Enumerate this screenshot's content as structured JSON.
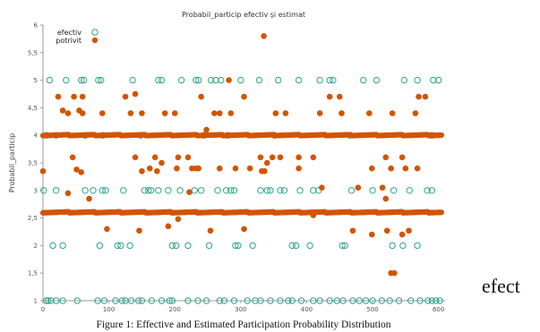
{
  "chart_data": {
    "type": "scatter",
    "title": "Probabil_particip efectiv și estimat",
    "ylabel": "Probabil_particip",
    "xlabel": "",
    "xlim": [
      0,
      610
    ],
    "ylim": [
      1,
      6
    ],
    "xticks": [
      0,
      100,
      200,
      300,
      400,
      500,
      600
    ],
    "yticks": [
      "1",
      "1,5",
      "2",
      "2,5",
      "3",
      "3,5",
      "4",
      "4,5",
      "5",
      "5,5",
      "6"
    ],
    "grid": false,
    "legend": "top-left",
    "series": [
      {
        "name": "efectiv",
        "marker": "hollow-circle",
        "color": "#2ca58d",
        "values": [
          {
            "x": 10,
            "y": 5
          },
          {
            "x": 35,
            "y": 5
          },
          {
            "x": 58,
            "y": 5
          },
          {
            "x": 62,
            "y": 5
          },
          {
            "x": 84,
            "y": 5
          },
          {
            "x": 88,
            "y": 5
          },
          {
            "x": 136,
            "y": 5
          },
          {
            "x": 175,
            "y": 5
          },
          {
            "x": 180,
            "y": 5
          },
          {
            "x": 210,
            "y": 5
          },
          {
            "x": 232,
            "y": 5
          },
          {
            "x": 236,
            "y": 5
          },
          {
            "x": 255,
            "y": 5
          },
          {
            "x": 262,
            "y": 5
          },
          {
            "x": 270,
            "y": 5
          },
          {
            "x": 300,
            "y": 5
          },
          {
            "x": 328,
            "y": 5
          },
          {
            "x": 357,
            "y": 5
          },
          {
            "x": 388,
            "y": 5
          },
          {
            "x": 420,
            "y": 5
          },
          {
            "x": 435,
            "y": 5
          },
          {
            "x": 440,
            "y": 5
          },
          {
            "x": 486,
            "y": 5
          },
          {
            "x": 506,
            "y": 5
          },
          {
            "x": 548,
            "y": 5
          },
          {
            "x": 568,
            "y": 5
          },
          {
            "x": 592,
            "y": 5
          },
          {
            "x": 600,
            "y": 5
          },
          {
            "x": 5,
            "y": 4
          },
          {
            "x": 20,
            "y": 4
          },
          {
            "x": 64,
            "y": 4
          },
          {
            "x": 91,
            "y": 4
          },
          {
            "x": 148,
            "y": 4
          },
          {
            "x": 244,
            "y": 4
          },
          {
            "x": 280,
            "y": 4
          },
          {
            "x": 351,
            "y": 4
          },
          {
            "x": 465,
            "y": 4
          },
          {
            "x": 590,
            "y": 4
          },
          {
            "x": 1,
            "y": 3
          },
          {
            "x": 20,
            "y": 3
          },
          {
            "x": 64,
            "y": 3
          },
          {
            "x": 76,
            "y": 3
          },
          {
            "x": 90,
            "y": 3
          },
          {
            "x": 95,
            "y": 3
          },
          {
            "x": 122,
            "y": 3
          },
          {
            "x": 154,
            "y": 3
          },
          {
            "x": 160,
            "y": 3
          },
          {
            "x": 164,
            "y": 3
          },
          {
            "x": 175,
            "y": 3
          },
          {
            "x": 190,
            "y": 3
          },
          {
            "x": 208,
            "y": 3
          },
          {
            "x": 230,
            "y": 3
          },
          {
            "x": 240,
            "y": 3
          },
          {
            "x": 265,
            "y": 3
          },
          {
            "x": 278,
            "y": 3
          },
          {
            "x": 285,
            "y": 3
          },
          {
            "x": 290,
            "y": 3
          },
          {
            "x": 330,
            "y": 3
          },
          {
            "x": 340,
            "y": 3
          },
          {
            "x": 345,
            "y": 3
          },
          {
            "x": 360,
            "y": 3
          },
          {
            "x": 366,
            "y": 3
          },
          {
            "x": 390,
            "y": 3
          },
          {
            "x": 410,
            "y": 3
          },
          {
            "x": 418,
            "y": 3
          },
          {
            "x": 468,
            "y": 3
          },
          {
            "x": 500,
            "y": 3
          },
          {
            "x": 532,
            "y": 3
          },
          {
            "x": 556,
            "y": 3
          },
          {
            "x": 583,
            "y": 3
          },
          {
            "x": 590,
            "y": 3
          },
          {
            "x": 15,
            "y": 2
          },
          {
            "x": 30,
            "y": 2
          },
          {
            "x": 86,
            "y": 2
          },
          {
            "x": 113,
            "y": 2
          },
          {
            "x": 118,
            "y": 2
          },
          {
            "x": 132,
            "y": 2
          },
          {
            "x": 196,
            "y": 2
          },
          {
            "x": 202,
            "y": 2
          },
          {
            "x": 220,
            "y": 2
          },
          {
            "x": 252,
            "y": 2
          },
          {
            "x": 292,
            "y": 2
          },
          {
            "x": 296,
            "y": 2
          },
          {
            "x": 318,
            "y": 2
          },
          {
            "x": 378,
            "y": 2
          },
          {
            "x": 384,
            "y": 2
          },
          {
            "x": 405,
            "y": 2
          },
          {
            "x": 454,
            "y": 2
          },
          {
            "x": 458,
            "y": 2
          },
          {
            "x": 530,
            "y": 2
          },
          {
            "x": 546,
            "y": 2
          },
          {
            "x": 568,
            "y": 2
          },
          {
            "x": 5,
            "y": 1
          },
          {
            "x": 8,
            "y": 1
          },
          {
            "x": 12,
            "y": 1
          },
          {
            "x": 20,
            "y": 1
          },
          {
            "x": 30,
            "y": 1
          },
          {
            "x": 52,
            "y": 1
          },
          {
            "x": 83,
            "y": 1
          },
          {
            "x": 93,
            "y": 1
          },
          {
            "x": 110,
            "y": 1
          },
          {
            "x": 120,
            "y": 1
          },
          {
            "x": 125,
            "y": 1
          },
          {
            "x": 134,
            "y": 1
          },
          {
            "x": 145,
            "y": 1
          },
          {
            "x": 150,
            "y": 1
          },
          {
            "x": 165,
            "y": 1
          },
          {
            "x": 180,
            "y": 1
          },
          {
            "x": 192,
            "y": 1
          },
          {
            "x": 196,
            "y": 1
          },
          {
            "x": 220,
            "y": 1
          },
          {
            "x": 235,
            "y": 1
          },
          {
            "x": 248,
            "y": 1
          },
          {
            "x": 268,
            "y": 1
          },
          {
            "x": 275,
            "y": 1
          },
          {
            "x": 290,
            "y": 1
          },
          {
            "x": 310,
            "y": 1
          },
          {
            "x": 322,
            "y": 1
          },
          {
            "x": 330,
            "y": 1
          },
          {
            "x": 345,
            "y": 1
          },
          {
            "x": 360,
            "y": 1
          },
          {
            "x": 372,
            "y": 1
          },
          {
            "x": 378,
            "y": 1
          },
          {
            "x": 392,
            "y": 1
          },
          {
            "x": 410,
            "y": 1
          },
          {
            "x": 420,
            "y": 1
          },
          {
            "x": 435,
            "y": 1
          },
          {
            "x": 446,
            "y": 1
          },
          {
            "x": 455,
            "y": 1
          },
          {
            "x": 470,
            "y": 1
          },
          {
            "x": 480,
            "y": 1
          },
          {
            "x": 490,
            "y": 1
          },
          {
            "x": 500,
            "y": 1
          },
          {
            "x": 514,
            "y": 1
          },
          {
            "x": 526,
            "y": 1
          },
          {
            "x": 540,
            "y": 1
          },
          {
            "x": 558,
            "y": 1
          },
          {
            "x": 572,
            "y": 1
          },
          {
            "x": 584,
            "y": 1
          },
          {
            "x": 590,
            "y": 1
          },
          {
            "x": 596,
            "y": 1
          },
          {
            "x": 602,
            "y": 1
          }
        ]
      },
      {
        "name": "potrivit",
        "marker": "filled-circle",
        "color": "#d35400",
        "values": [
          {
            "x": 335,
            "y": 5.8
          },
          {
            "x": 282,
            "y": 5
          },
          {
            "x": 23,
            "y": 4.7
          },
          {
            "x": 47,
            "y": 4.7
          },
          {
            "x": 60,
            "y": 4.7
          },
          {
            "x": 125,
            "y": 4.7
          },
          {
            "x": 140,
            "y": 4.75
          },
          {
            "x": 240,
            "y": 4.7
          },
          {
            "x": 305,
            "y": 4.7
          },
          {
            "x": 435,
            "y": 4.7
          },
          {
            "x": 450,
            "y": 4.7
          },
          {
            "x": 570,
            "y": 4.7
          },
          {
            "x": 580,
            "y": 4.7
          },
          {
            "x": 30,
            "y": 4.45
          },
          {
            "x": 38,
            "y": 4.4
          },
          {
            "x": 55,
            "y": 4.45
          },
          {
            "x": 60,
            "y": 4.4
          },
          {
            "x": 90,
            "y": 4.4
          },
          {
            "x": 133,
            "y": 4.4
          },
          {
            "x": 150,
            "y": 4.4
          },
          {
            "x": 185,
            "y": 4.4
          },
          {
            "x": 200,
            "y": 4.4
          },
          {
            "x": 260,
            "y": 4.4
          },
          {
            "x": 268,
            "y": 4.4
          },
          {
            "x": 285,
            "y": 4.4
          },
          {
            "x": 353,
            "y": 4.4
          },
          {
            "x": 368,
            "y": 4.4
          },
          {
            "x": 420,
            "y": 4.4
          },
          {
            "x": 453,
            "y": 4.4
          },
          {
            "x": 495,
            "y": 4.4
          },
          {
            "x": 530,
            "y": 4.4
          },
          {
            "x": 565,
            "y": 4.4
          },
          {
            "x": 248,
            "y": 4.1
          },
          {
            "x": 45,
            "y": 3.6
          },
          {
            "x": 140,
            "y": 3.6
          },
          {
            "x": 170,
            "y": 3.6
          },
          {
            "x": 205,
            "y": 3.6
          },
          {
            "x": 220,
            "y": 3.6
          },
          {
            "x": 330,
            "y": 3.6
          },
          {
            "x": 348,
            "y": 3.6
          },
          {
            "x": 360,
            "y": 3.6
          },
          {
            "x": 388,
            "y": 3.6
          },
          {
            "x": 410,
            "y": 3.6
          },
          {
            "x": 520,
            "y": 3.6
          },
          {
            "x": 545,
            "y": 3.6
          },
          {
            "x": 180,
            "y": 3.5
          },
          {
            "x": 340,
            "y": 3.5
          },
          {
            "x": 0,
            "y": 3.35
          },
          {
            "x": 51,
            "y": 3.38
          },
          {
            "x": 58,
            "y": 3.33
          },
          {
            "x": 150,
            "y": 3.35
          },
          {
            "x": 162,
            "y": 3.4
          },
          {
            "x": 173,
            "y": 3.35
          },
          {
            "x": 203,
            "y": 3.4
          },
          {
            "x": 226,
            "y": 3.4
          },
          {
            "x": 232,
            "y": 3.4
          },
          {
            "x": 236,
            "y": 3.4
          },
          {
            "x": 268,
            "y": 3.4
          },
          {
            "x": 292,
            "y": 3.4
          },
          {
            "x": 314,
            "y": 3.4
          },
          {
            "x": 332,
            "y": 3.35
          },
          {
            "x": 336,
            "y": 3.35
          },
          {
            "x": 388,
            "y": 3.4
          },
          {
            "x": 499,
            "y": 3.4
          },
          {
            "x": 528,
            "y": 3.4
          },
          {
            "x": 550,
            "y": 3.4
          },
          {
            "x": 568,
            "y": 3.4
          },
          {
            "x": 38,
            "y": 2.95
          },
          {
            "x": 222,
            "y": 2.97
          },
          {
            "x": 423,
            "y": 3.05
          },
          {
            "x": 478,
            "y": 3.05
          },
          {
            "x": 515,
            "y": 3.05
          },
          {
            "x": 70,
            "y": 2.85
          },
          {
            "x": 520,
            "y": 2.85
          },
          {
            "x": 410,
            "y": 2.55
          },
          {
            "x": 205,
            "y": 2.48
          },
          {
            "x": 97,
            "y": 2.3
          },
          {
            "x": 146,
            "y": 2.27
          },
          {
            "x": 190,
            "y": 2.35
          },
          {
            "x": 254,
            "y": 2.27
          },
          {
            "x": 305,
            "y": 2.3
          },
          {
            "x": 470,
            "y": 2.27
          },
          {
            "x": 522,
            "y": 2.27
          },
          {
            "x": 555,
            "y": 2.27
          },
          {
            "x": 499,
            "y": 2.2
          },
          {
            "x": 545,
            "y": 2.2
          },
          {
            "x": 528,
            "y": 1.5
          },
          {
            "x": 533,
            "y": 1.5
          }
        ],
        "dense_band_at_4": {
          "from_x": 0,
          "to_x": 605
        },
        "dense_band_at_2_6": {
          "from_x": 0,
          "to_x": 605
        }
      }
    ]
  },
  "caption": "Figure 1: Effective and Estimated Participation Probability Distribution",
  "side_text": "efect",
  "colors": {
    "efectiv": "#2ca58d",
    "potrivit": "#d35400",
    "axis": "#9a9a9a"
  }
}
